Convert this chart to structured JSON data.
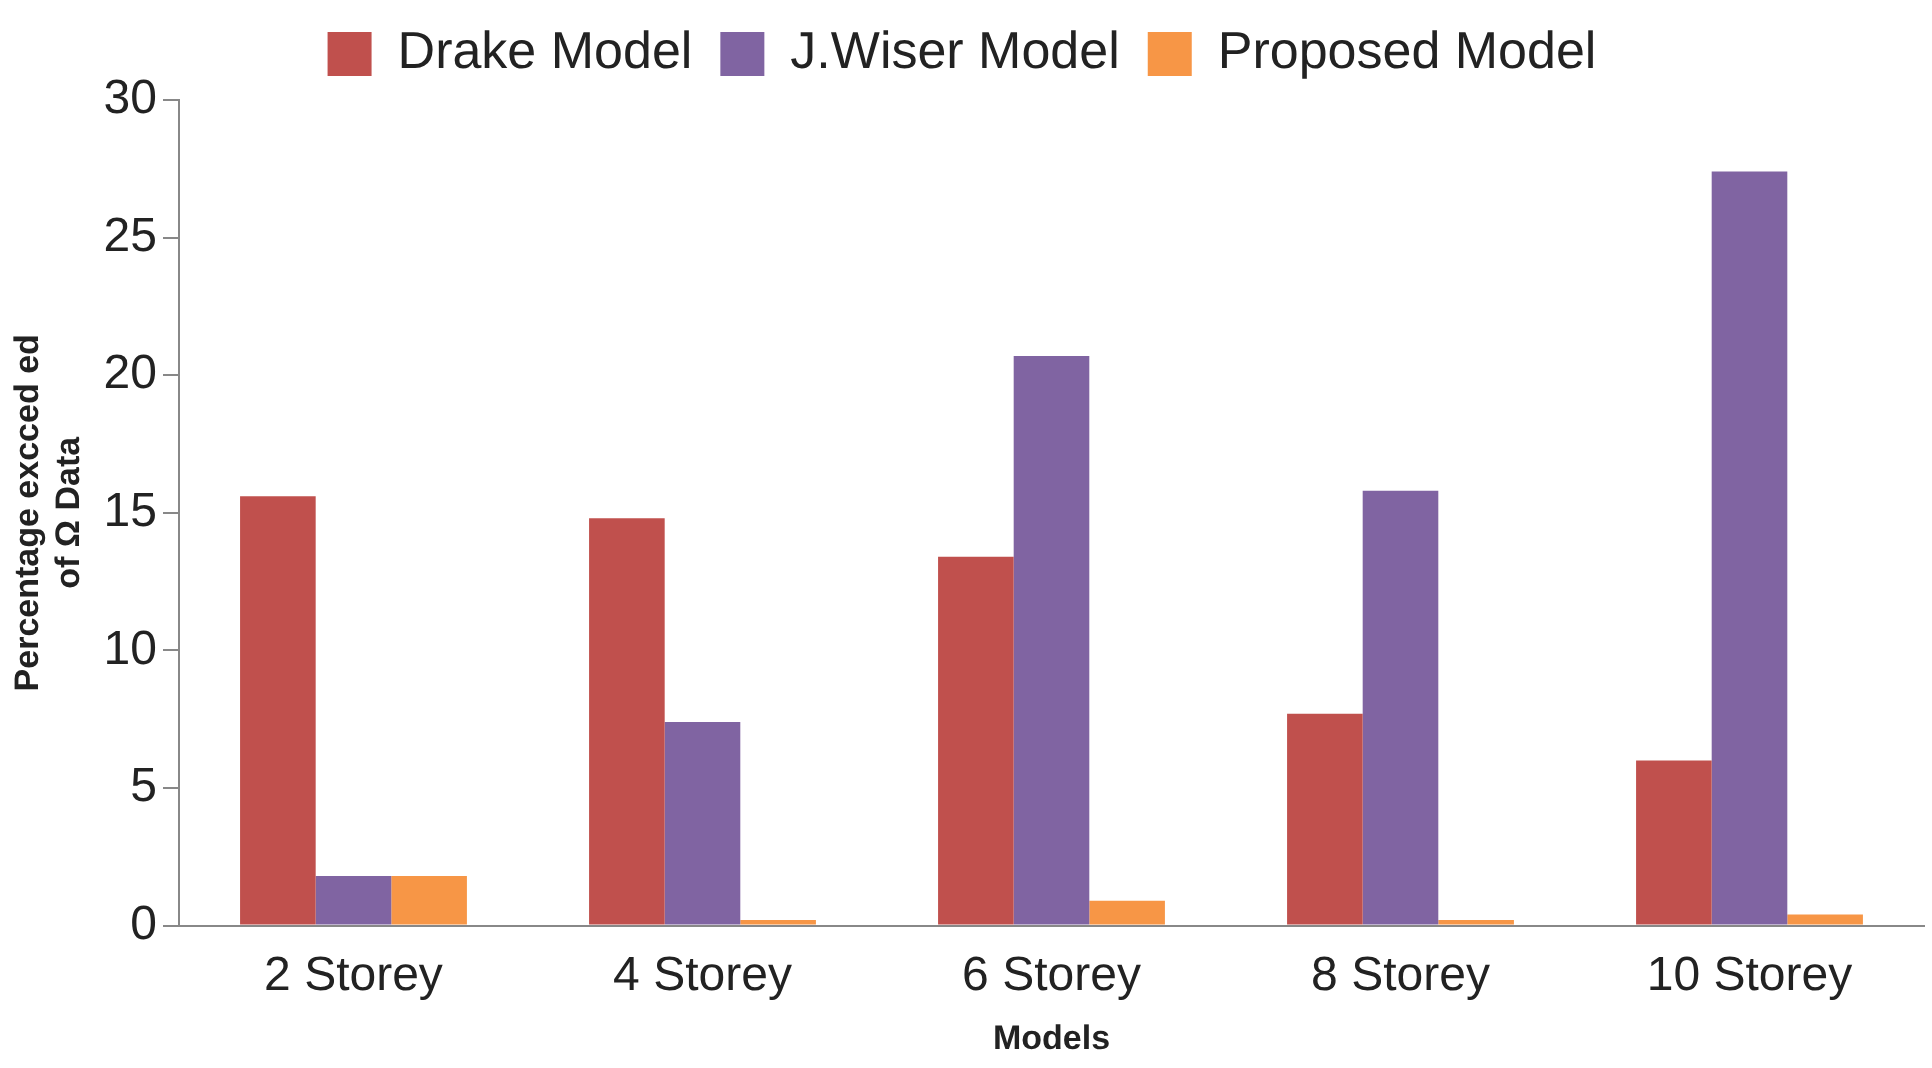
{
  "chart_data": {
    "type": "bar",
    "xlabel": "Models",
    "ylabel": "Percentage excced ed\nof Ω Data",
    "categories": [
      "2 Storey",
      "4 Storey",
      "6 Storey",
      "8 Storey",
      "10 Storey"
    ],
    "series": [
      {
        "name": "Drake Model",
        "color": "#c0504d",
        "values": [
          15.6,
          14.8,
          13.4,
          7.7,
          6.0
        ]
      },
      {
        "name": "J.Wiser Model",
        "color": "#8064a2",
        "values": [
          1.8,
          7.4,
          20.7,
          15.8,
          27.4
        ]
      },
      {
        "name": "Proposed Model",
        "color": "#f79646",
        "values": [
          1.8,
          0.2,
          0.9,
          0.2,
          0.4
        ]
      }
    ],
    "ylim": [
      0,
      30
    ],
    "yticks": [
      0,
      5,
      10,
      15,
      20,
      25,
      30
    ],
    "grid": false,
    "legend": "top"
  }
}
